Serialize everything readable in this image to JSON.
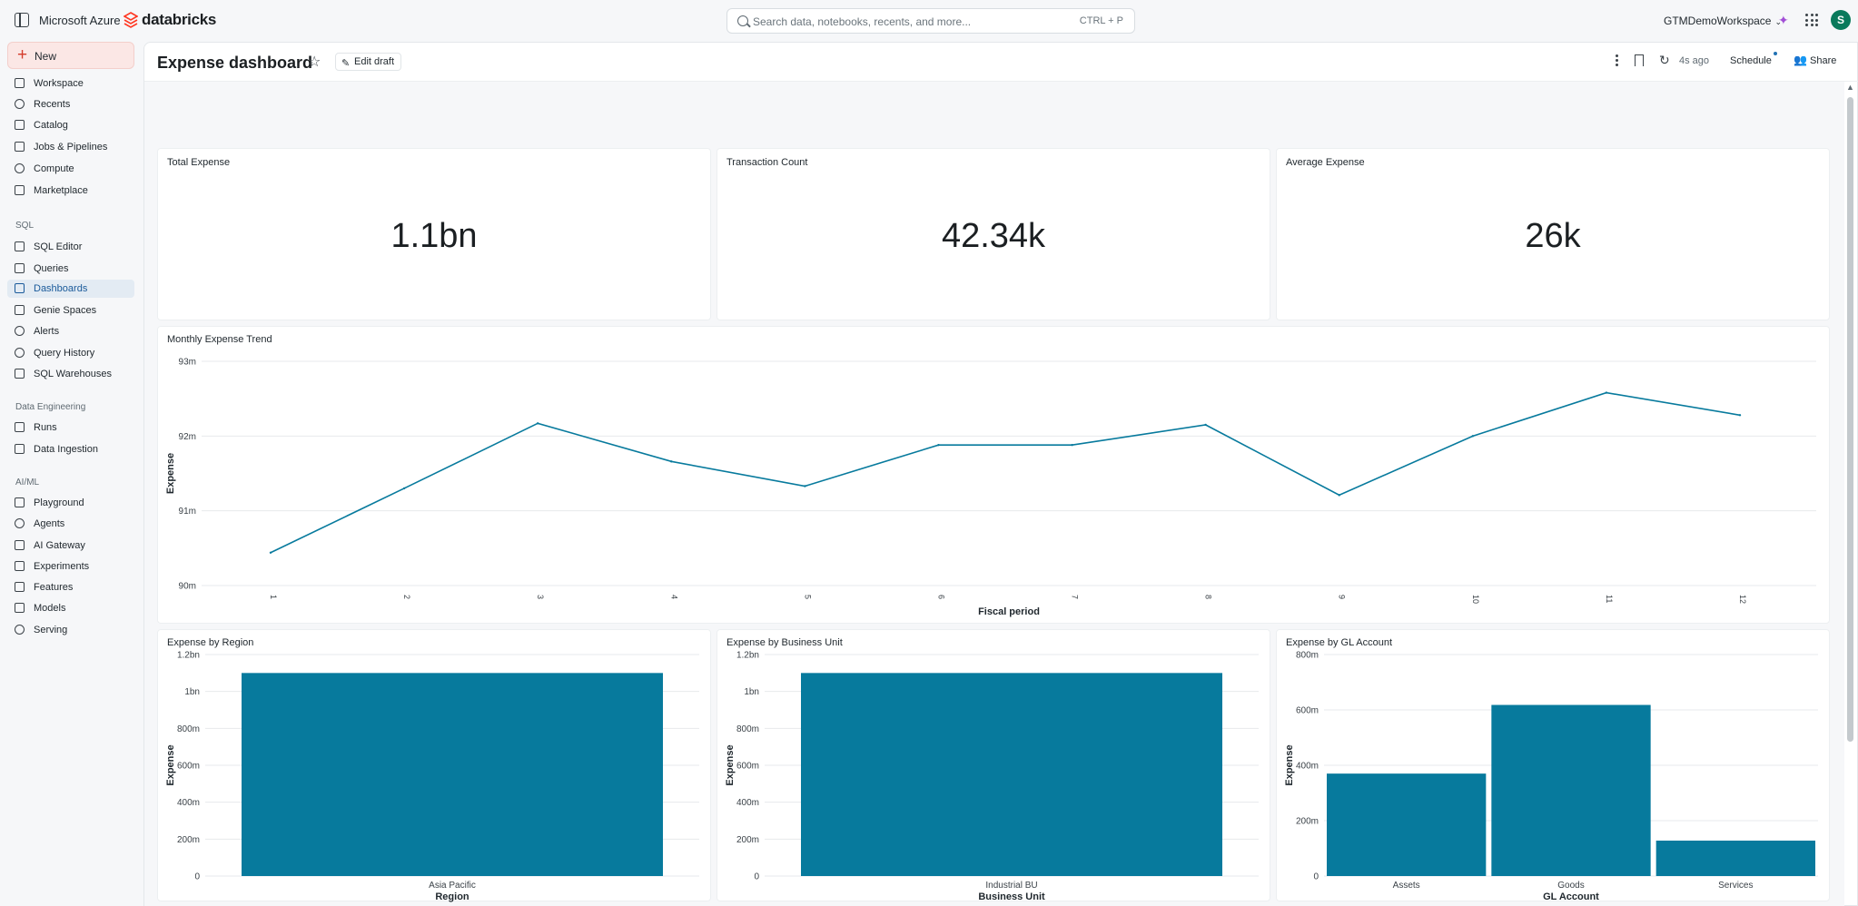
{
  "topbar": {
    "org": "Microsoft Azure",
    "brand": "databricks",
    "search_placeholder": "Search data, notebooks, recents, and more...",
    "search_shortcut": "CTRL + P",
    "workspace": "GTMDemoWorkspace",
    "avatar_initial": "S"
  },
  "sidebar": {
    "new_label": "New",
    "items": [
      {
        "label": "Workspace",
        "icon": "folder-icon"
      },
      {
        "label": "Recents",
        "icon": "clock-icon"
      },
      {
        "label": "Catalog",
        "icon": "catalog-icon"
      },
      {
        "label": "Jobs & Pipelines",
        "icon": "workflow-icon"
      },
      {
        "label": "Compute",
        "icon": "cloud-icon"
      },
      {
        "label": "Marketplace",
        "icon": "store-icon"
      }
    ],
    "sql_heading": "SQL",
    "sql_items": [
      {
        "label": "SQL Editor",
        "icon": "editor-icon"
      },
      {
        "label": "Queries",
        "icon": "query-icon"
      },
      {
        "label": "Dashboards",
        "icon": "dashboard-icon"
      },
      {
        "label": "Genie Spaces",
        "icon": "genie-icon"
      },
      {
        "label": "Alerts",
        "icon": "bell-icon"
      },
      {
        "label": "Query History",
        "icon": "history-icon"
      },
      {
        "label": "SQL Warehouses",
        "icon": "warehouse-icon"
      }
    ],
    "de_heading": "Data Engineering",
    "de_items": [
      {
        "label": "Runs",
        "icon": "list-icon"
      },
      {
        "label": "Data Ingestion",
        "icon": "ingestion-icon"
      }
    ],
    "ai_heading": "AI/ML",
    "ai_items": [
      {
        "label": "Playground",
        "icon": "playground-icon"
      },
      {
        "label": "Agents",
        "icon": "agent-icon"
      },
      {
        "label": "AI Gateway",
        "icon": "gateway-icon"
      },
      {
        "label": "Experiments",
        "icon": "flask-icon"
      },
      {
        "label": "Features",
        "icon": "features-icon"
      },
      {
        "label": "Models",
        "icon": "model-icon"
      },
      {
        "label": "Serving",
        "icon": "serving-icon"
      }
    ],
    "active_label": "Dashboards"
  },
  "header": {
    "title": "Expense dashboard",
    "edit_label": "Edit draft",
    "refresh_time": "4s ago",
    "schedule_label": "Schedule",
    "share_label": "Share"
  },
  "counters": {
    "total_title": "Total Expense",
    "total_value": "1.1bn",
    "count_title": "Transaction Count",
    "count_value": "42.34k",
    "avg_title": "Average Expense",
    "avg_value": "26k"
  },
  "colors": {
    "accent": "#077a9d"
  },
  "chart_data": [
    {
      "type": "line",
      "title": "Monthly Expense Trend",
      "xlabel": "Fiscal period",
      "ylabel": "Expense",
      "x": [
        "1",
        "2",
        "3",
        "4",
        "5",
        "6",
        "7",
        "8",
        "9",
        "10",
        "11",
        "12"
      ],
      "values": [
        90.44,
        91.3,
        92.17,
        91.66,
        91.33,
        91.88,
        91.88,
        92.15,
        91.21,
        92.0,
        92.58,
        92.28
      ],
      "ylim": [
        90,
        93
      ],
      "yticks": [
        "90m",
        "91m",
        "92m",
        "93m"
      ],
      "ytick_values": [
        90,
        91,
        92,
        93
      ],
      "grid": true
    },
    {
      "type": "bar",
      "title": "Expense by Region",
      "xlabel": "Region",
      "ylabel": "Expense",
      "categories": [
        "Asia Pacific"
      ],
      "values": [
        1.1
      ],
      "ylim": [
        0,
        1.2
      ],
      "yticks": [
        "0",
        "200m",
        "400m",
        "600m",
        "800m",
        "1bn",
        "1.2bn"
      ],
      "ytick_values": [
        0,
        0.2,
        0.4,
        0.6,
        0.8,
        1.0,
        1.2
      ],
      "grid": true
    },
    {
      "type": "bar",
      "title": "Expense by Business Unit",
      "xlabel": "Business Unit",
      "ylabel": "Expense",
      "categories": [
        "Industrial BU"
      ],
      "values": [
        1.1
      ],
      "ylim": [
        0,
        1.2
      ],
      "yticks": [
        "0",
        "200m",
        "400m",
        "600m",
        "800m",
        "1bn",
        "1.2bn"
      ],
      "ytick_values": [
        0,
        0.2,
        0.4,
        0.6,
        0.8,
        1.0,
        1.2
      ],
      "grid": true
    },
    {
      "type": "bar",
      "title": "Expense by GL Account",
      "xlabel": "GL Account",
      "ylabel": "Expense",
      "categories": [
        "Assets",
        "Goods",
        "Services"
      ],
      "values": [
        370,
        618,
        128
      ],
      "ylim": [
        0,
        800
      ],
      "yticks": [
        "0",
        "200m",
        "400m",
        "600m",
        "800m"
      ],
      "ytick_values": [
        0,
        200,
        400,
        600,
        800
      ],
      "grid": true
    }
  ]
}
